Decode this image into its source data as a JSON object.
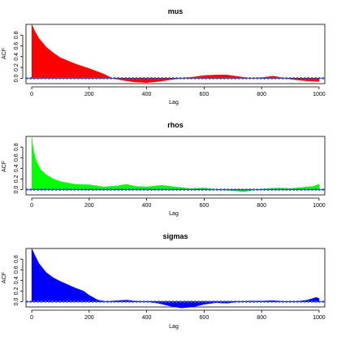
{
  "chart_data": [
    {
      "type": "area",
      "title": "mus",
      "xlabel": "Lag",
      "ylabel": "ACF",
      "xlim": [
        -20,
        1020
      ],
      "ylim": [
        -0.1,
        1.0
      ],
      "xticks": [
        0,
        200,
        400,
        600,
        800,
        1000
      ],
      "xtick_labels": [
        "0",
        "200",
        "400",
        "600",
        "800",
        "1000"
      ],
      "yticks": [
        0.0,
        0.2,
        0.4,
        0.6,
        0.8
      ],
      "ytick_labels": [
        "0.0",
        "0.2",
        "0.4",
        "0.6",
        "0.8"
      ],
      "confidence_band": [
        -0.01,
        0.01
      ],
      "series": [
        {
          "color": "#ff0000",
          "x": [
            0,
            10,
            25,
            50,
            75,
            100,
            150,
            200,
            250,
            280,
            320,
            360,
            400,
            440,
            480,
            520,
            560,
            600,
            640,
            680,
            720,
            760,
            800,
            840,
            880,
            920,
            960,
            1000
          ],
          "values": [
            1.0,
            0.88,
            0.74,
            0.58,
            0.47,
            0.38,
            0.27,
            0.18,
            0.08,
            0.0,
            -0.04,
            -0.07,
            -0.08,
            -0.06,
            -0.03,
            0.0,
            0.02,
            0.05,
            0.06,
            0.06,
            0.03,
            0.0,
            0.01,
            0.04,
            0.0,
            -0.03,
            -0.05,
            -0.06
          ]
        }
      ]
    },
    {
      "type": "area",
      "title": "rhos",
      "xlabel": "Lag",
      "ylabel": "ACF",
      "xlim": [
        -20,
        1020
      ],
      "ylim": [
        -0.1,
        1.0
      ],
      "xticks": [
        0,
        200,
        400,
        600,
        800,
        1000
      ],
      "xtick_labels": [
        "0",
        "200",
        "400",
        "600",
        "800",
        "1000"
      ],
      "yticks": [
        0.0,
        0.2,
        0.4,
        0.6,
        0.8
      ],
      "ytick_labels": [
        "0.0",
        "0.2",
        "0.4",
        "0.6",
        "0.8"
      ],
      "confidence_band": [
        -0.01,
        0.01
      ],
      "series": [
        {
          "color": "#00ff00",
          "x": [
            0,
            5,
            15,
            30,
            50,
            75,
            100,
            150,
            200,
            250,
            300,
            330,
            360,
            400,
            450,
            500,
            550,
            600,
            650,
            700,
            740,
            780,
            820,
            860,
            900,
            940,
            980,
            1000
          ],
          "values": [
            1.0,
            0.75,
            0.55,
            0.38,
            0.28,
            0.2,
            0.15,
            0.1,
            0.09,
            0.05,
            0.07,
            0.1,
            0.06,
            0.05,
            0.08,
            0.05,
            0.02,
            0.03,
            0.0,
            -0.02,
            -0.04,
            0.0,
            0.02,
            0.03,
            0.02,
            0.04,
            0.06,
            0.1
          ]
        }
      ]
    },
    {
      "type": "area",
      "title": "sigmas",
      "xlabel": "Lag",
      "ylabel": "ACF",
      "xlim": [
        -20,
        1020
      ],
      "ylim": [
        -0.1,
        1.0
      ],
      "xticks": [
        0,
        200,
        400,
        600,
        800,
        1000
      ],
      "xtick_labels": [
        "0",
        "200",
        "400",
        "600",
        "800",
        "1000"
      ],
      "yticks": [
        0.0,
        0.2,
        0.4,
        0.6,
        0.8
      ],
      "ytick_labels": [
        "0.0",
        "0.2",
        "0.4",
        "0.6",
        "0.8"
      ],
      "confidence_band": [
        -0.01,
        0.01
      ],
      "series": [
        {
          "color": "#0000ff",
          "x": [
            0,
            10,
            25,
            50,
            75,
            100,
            125,
            150,
            180,
            200,
            230,
            260,
            300,
            330,
            360,
            400,
            440,
            480,
            520,
            560,
            600,
            640,
            680,
            720,
            760,
            800,
            840,
            880,
            920,
            960,
            990,
            1000
          ],
          "values": [
            1.0,
            0.88,
            0.72,
            0.55,
            0.45,
            0.38,
            0.32,
            0.26,
            0.2,
            0.12,
            0.03,
            0.0,
            0.02,
            0.03,
            0.01,
            0.0,
            -0.03,
            -0.08,
            -0.12,
            -0.1,
            -0.05,
            -0.02,
            -0.03,
            0.0,
            0.01,
            0.01,
            0.02,
            0.0,
            0.0,
            0.03,
            0.08,
            0.06
          ]
        }
      ]
    }
  ]
}
